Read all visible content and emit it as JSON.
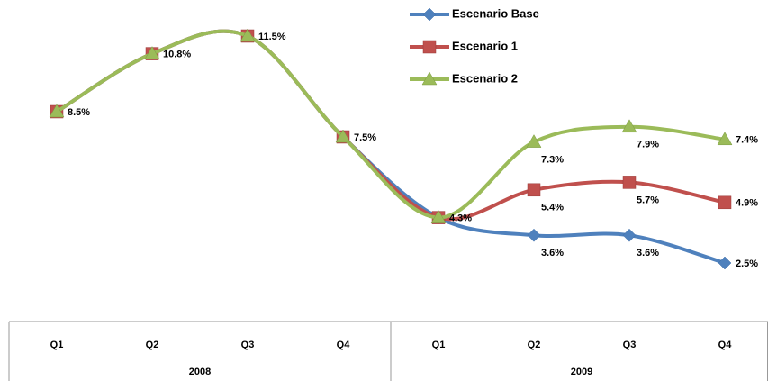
{
  "chart_data": {
    "type": "line",
    "groups": [
      {
        "label": "2008",
        "categories": [
          "Q1",
          "Q2",
          "Q3",
          "Q4"
        ]
      },
      {
        "label": "2009",
        "categories": [
          "Q1",
          "Q2",
          "Q3",
          "Q4"
        ]
      }
    ],
    "series": [
      {
        "name": "Escenario Base",
        "color": "#4f81bd",
        "marker": "diamond",
        "values": [
          8.5,
          10.8,
          11.5,
          7.5,
          4.3,
          3.6,
          3.6,
          2.5
        ],
        "value_labels": [
          null,
          null,
          null,
          null,
          null,
          "3.6%",
          "3.6%",
          "2.5%"
        ]
      },
      {
        "name": "Escenario 1",
        "color": "#c0504d",
        "marker": "square",
        "values": [
          8.5,
          10.8,
          11.5,
          7.5,
          4.3,
          5.4,
          5.7,
          4.9
        ],
        "value_labels": [
          null,
          null,
          null,
          null,
          null,
          "5.4%",
          "5.7%",
          "4.9%"
        ]
      },
      {
        "name": "Escenario 2",
        "color": "#9bbb59",
        "marker": "triangle",
        "values": [
          8.5,
          10.8,
          11.5,
          7.5,
          4.3,
          7.3,
          7.9,
          7.4
        ],
        "value_labels": [
          "8.5%",
          "10.8%",
          "11.5%",
          "7.5%",
          "4.3%",
          "7.3%",
          "7.9%",
          "7.4%"
        ]
      }
    ],
    "smooth": true,
    "legend": "top"
  }
}
